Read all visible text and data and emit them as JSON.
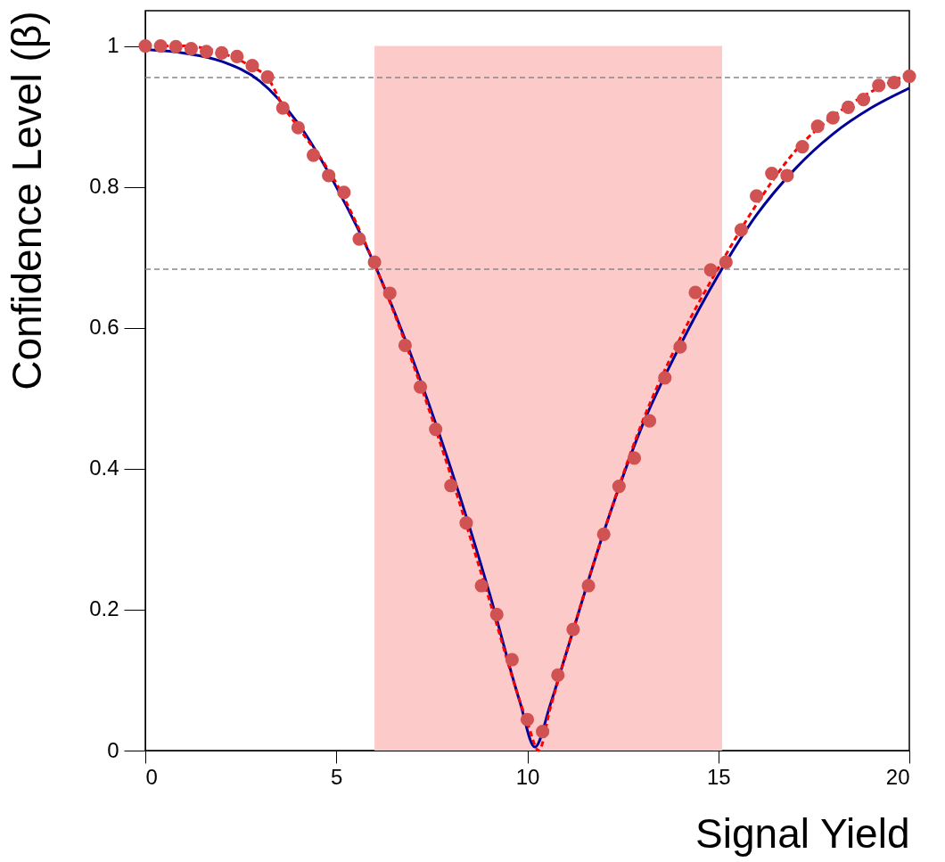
{
  "chart_data": {
    "type": "scatter",
    "xlabel": "Signal Yield",
    "ylabel": "Confidence Level (β)",
    "xlim": [
      0,
      20
    ],
    "ylim": [
      0,
      1.05
    ],
    "xticks": [
      0,
      5,
      10,
      15,
      20
    ],
    "yticks": [
      0,
      0.2,
      0.4,
      0.6,
      0.8,
      1
    ],
    "grid": false,
    "series": [
      {
        "type": "line",
        "color": "#000099",
        "line_style": "solid",
        "marker": "none",
        "x": [
          0,
          1,
          2,
          3,
          4,
          5,
          6,
          7,
          8,
          9,
          9.8,
          10.2,
          10.6,
          11,
          12,
          13,
          14,
          15,
          16,
          17,
          18,
          19,
          20
        ],
        "values": [
          0.995,
          0.99,
          0.978,
          0.95,
          0.89,
          0.8,
          0.69,
          0.555,
          0.4,
          0.225,
          0.07,
          0.005,
          0.065,
          0.135,
          0.31,
          0.46,
          0.575,
          0.675,
          0.76,
          0.825,
          0.875,
          0.912,
          0.94
        ]
      },
      {
        "type": "line",
        "color": "#ff0000",
        "line_style": "dashed",
        "marker": "none",
        "x": [
          0,
          1,
          2,
          2.8,
          3.2,
          3.6,
          4,
          5,
          6,
          7,
          8,
          9,
          10,
          10.3,
          10.6,
          11,
          12,
          13,
          14,
          15,
          16,
          17,
          18,
          19,
          20
        ],
        "values": [
          1,
          1,
          0.99,
          0.97,
          0.955,
          0.915,
          0.885,
          0.805,
          0.69,
          0.55,
          0.39,
          0.215,
          0.04,
          0,
          0.06,
          0.135,
          0.31,
          0.465,
          0.585,
          0.685,
          0.775,
          0.85,
          0.9,
          0.935,
          0.96
        ]
      },
      {
        "color": "#d05252",
        "marker": "circle",
        "x": [
          0,
          0.4,
          0.8,
          1.2,
          1.6,
          2,
          2.4,
          2.8,
          3.2,
          3.6,
          4,
          4.4,
          4.8,
          5.2,
          5.6,
          6,
          6.4,
          6.8,
          7.2,
          7.6,
          8,
          8.4,
          8.8,
          9.2,
          9.6,
          10,
          10.4,
          10.8,
          11.2,
          11.6,
          12,
          12.4,
          12.8,
          13.2,
          13.6,
          14,
          14.4,
          14.8,
          15.2,
          15.6,
          16,
          16.4,
          16.8,
          17.2,
          17.6,
          18,
          18.4,
          18.8,
          19.2,
          19.6,
          20
        ],
        "values": [
          1,
          1,
          0.999,
          0.996,
          0.992,
          0.99,
          0.985,
          0.972,
          0.956,
          0.912,
          0.884,
          0.845,
          0.816,
          0.792,
          0.726,
          0.693,
          0.649,
          0.575,
          0.516,
          0.456,
          0.376,
          0.323,
          0.234,
          0.193,
          0.129,
          0.044,
          0.027,
          0.107,
          0.172,
          0.234,
          0.307,
          0.375,
          0.415,
          0.468,
          0.529,
          0.573,
          0.65,
          0.682,
          0.693,
          0.739,
          0.787,
          0.819,
          0.816,
          0.857,
          0.886,
          0.898,
          0.913,
          0.924,
          0.944,
          0.948,
          0.957
        ]
      }
    ],
    "bands": [
      {
        "axis": "x",
        "from": 6,
        "to": 15.1,
        "color": "#fdcaca"
      }
    ],
    "ref_lines": [
      {
        "axis": "y",
        "value": 0.955,
        "color": "#888888",
        "line_style": "dashed"
      },
      {
        "axis": "y",
        "value": 0.683,
        "color": "#888888",
        "line_style": "dashed"
      }
    ]
  }
}
